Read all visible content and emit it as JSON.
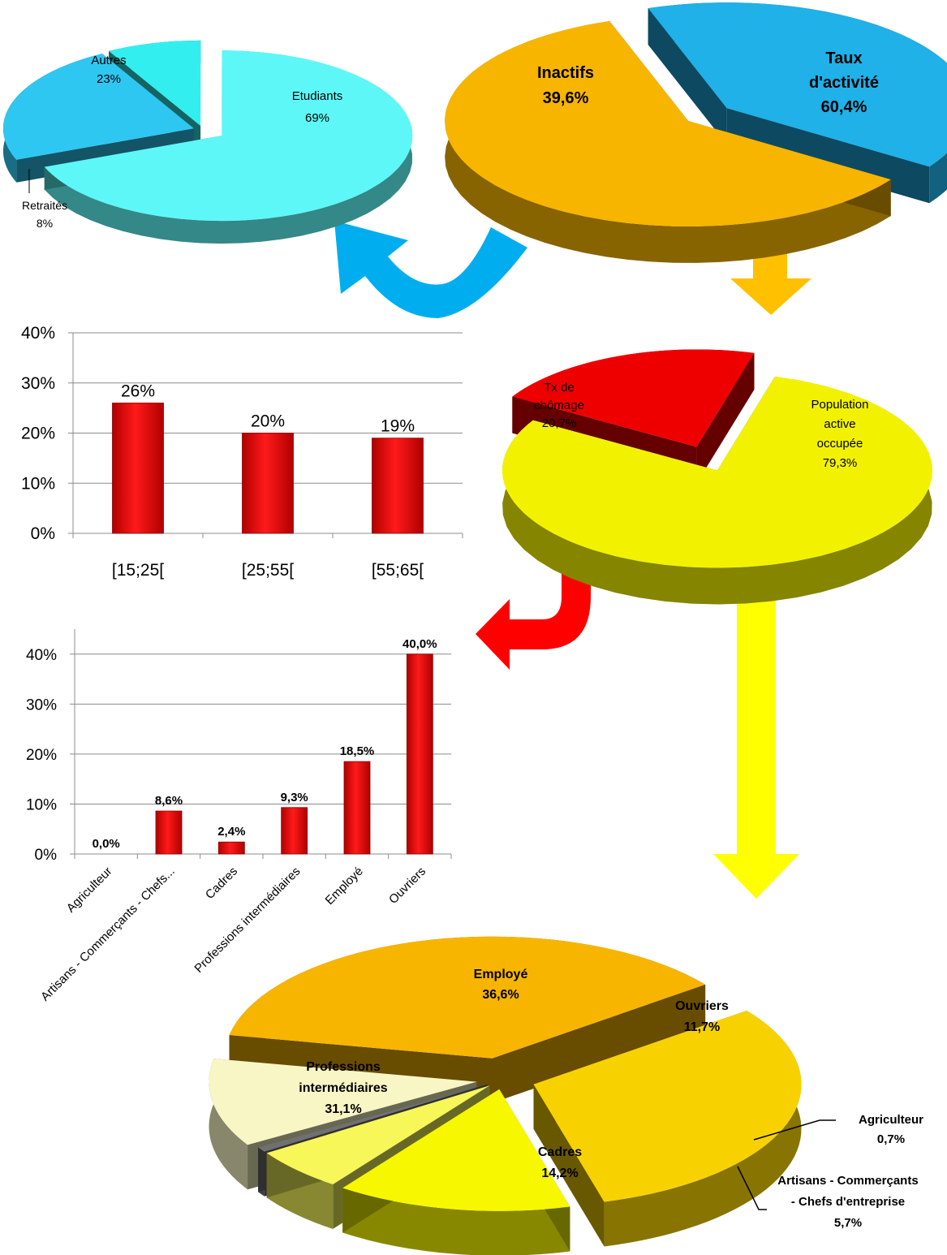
{
  "chart_data": [
    {
      "id": "inactifs_breakdown",
      "type": "pie",
      "labels": [
        "Etudiants",
        "Autres",
        "Retraités"
      ],
      "values": [
        69,
        23,
        8
      ],
      "value_labels": [
        "69%",
        "23%",
        "8%"
      ],
      "colors": [
        "#5ef7f7",
        "#2ec7f2",
        "#33eeee"
      ]
    },
    {
      "id": "activite",
      "type": "pie",
      "labels": [
        "Inactifs",
        "Taux\nd'activité"
      ],
      "values": [
        39.6,
        60.4
      ],
      "value_labels": [
        "39,6%",
        "60,4%"
      ],
      "colors": [
        "#1fb1e8",
        "#f7b500"
      ]
    },
    {
      "id": "chomage_par_age",
      "type": "bar",
      "categories": [
        "[15;25[",
        "[25;55[",
        "[55;65["
      ],
      "values": [
        26,
        20,
        19
      ],
      "value_labels": [
        "26%",
        "20%",
        "19%"
      ],
      "ylim": [
        0,
        40
      ],
      "yticks": [
        "0%",
        "10%",
        "20%",
        "30%",
        "40%"
      ],
      "grid": true,
      "bar_color": "#ee0000"
    },
    {
      "id": "population_active",
      "type": "pie",
      "labels": [
        "Tx de\nchômage",
        "Population\nactive\noccupée"
      ],
      "values": [
        20.7,
        79.3
      ],
      "value_labels": [
        "20,7%",
        "79,3%"
      ],
      "colors": [
        "#ee0000",
        "#f2f200"
      ]
    },
    {
      "id": "chomage_par_csp",
      "type": "bar",
      "categories": [
        "Agriculteur",
        "Artisans - Commerçants - Chefs...",
        "Cadres",
        "Professions intermédiaires",
        "Employé",
        "Ouvriers"
      ],
      "values": [
        0.0,
        8.6,
        2.4,
        9.3,
        18.5,
        40.0
      ],
      "value_labels": [
        "0,0%",
        "8,6%",
        "2,4%",
        "9,3%",
        "18,5%",
        "40,0%"
      ],
      "ylim": [
        0,
        45
      ],
      "yticks": [
        "0%",
        "10%",
        "20%",
        "30%",
        "40%"
      ],
      "ytick_values": [
        0,
        10,
        20,
        30,
        40
      ],
      "grid": true,
      "bar_color": "#ee0000"
    },
    {
      "id": "emploi_par_csp",
      "type": "pie",
      "labels": [
        "Employé",
        "Professions\nintermédiaires",
        "Cadres",
        "Artisans -  Commerçants\n- Chefs d'entreprise",
        "Agriculteur",
        "Ouvriers"
      ],
      "values": [
        36.6,
        31.1,
        14.2,
        5.7,
        0.7,
        11.7
      ],
      "value_labels": [
        "36,6%",
        "31,1%",
        "14,2%",
        "5,7%",
        "0,7%",
        "11,7%"
      ],
      "colors": [
        "#f7b500",
        "#f7d200",
        "#f7f700",
        "#f7f75a",
        "#707070",
        "#f8f6c4"
      ]
    }
  ],
  "colors": {
    "arrow_blue": "#00aeef",
    "arrow_orange": "#ffc000",
    "arrow_red": "#ff0000",
    "arrow_yellow": "#ffff00"
  }
}
